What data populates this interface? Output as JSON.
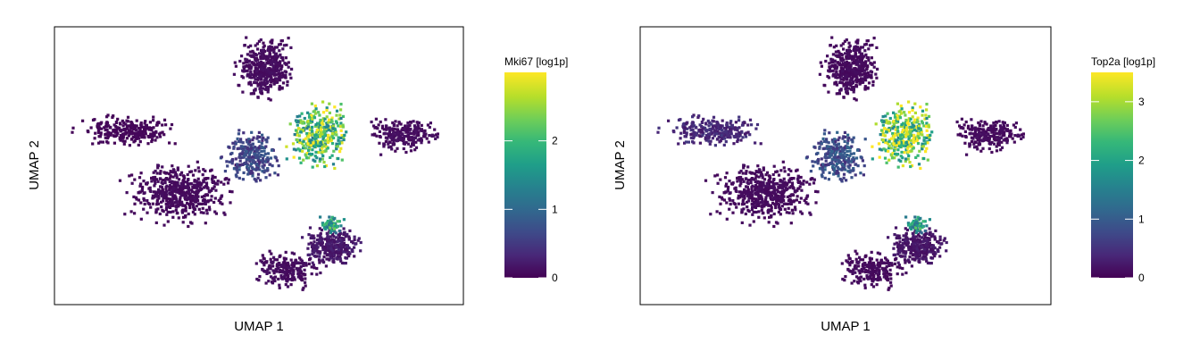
{
  "chart_data": [
    {
      "type": "scatter",
      "panel": "left",
      "xlabel": "UMAP 1",
      "ylabel": "UMAP 2",
      "colorbar": {
        "title": "Mki67 [log1p]",
        "min": 0,
        "max": 3.0,
        "ticks": [
          0,
          1,
          2
        ],
        "colormap": "viridis"
      },
      "series": [
        {
          "clusters": [
            {
              "region": "top lobe",
              "expression": 0.1
            },
            {
              "region": "upper-right cluster",
              "expression": 2.2
            },
            {
              "region": "right arm",
              "expression": 0.1
            },
            {
              "region": "left arm",
              "expression": 0.05
            },
            {
              "region": "left-center body",
              "expression": 0.08
            },
            {
              "region": "center bridge",
              "expression": 0.6
            },
            {
              "region": "lower-right cluster",
              "expression": 0.2
            },
            {
              "region": "lower-right tip",
              "expression": 1.8
            },
            {
              "region": "bottom arc",
              "expression": 0.1
            }
          ]
        }
      ]
    },
    {
      "type": "scatter",
      "panel": "right",
      "xlabel": "UMAP 1",
      "ylabel": "UMAP 2",
      "colorbar": {
        "title": "Top2a [log1p]",
        "min": 0,
        "max": 3.5,
        "ticks": [
          0,
          1,
          2,
          3
        ],
        "colormap": "viridis"
      },
      "series": [
        {
          "clusters": [
            {
              "region": "top lobe",
              "expression": 0.1
            },
            {
              "region": "upper-right cluster",
              "expression": 2.8
            },
            {
              "region": "right arm",
              "expression": 0.1
            },
            {
              "region": "left arm",
              "expression": 0.4
            },
            {
              "region": "left-center body",
              "expression": 0.1
            },
            {
              "region": "center bridge",
              "expression": 0.8
            },
            {
              "region": "lower-right cluster",
              "expression": 0.2
            },
            {
              "region": "lower-right tip",
              "expression": 2.0
            },
            {
              "region": "bottom arc",
              "expression": 0.1
            }
          ]
        }
      ]
    }
  ],
  "colors": {
    "viridis": [
      "#440154",
      "#482878",
      "#3e4a89",
      "#31688e",
      "#26828e",
      "#1f9e89",
      "#35b779",
      "#6ece58",
      "#b5de2b",
      "#fde725"
    ],
    "frame": "#000000"
  }
}
